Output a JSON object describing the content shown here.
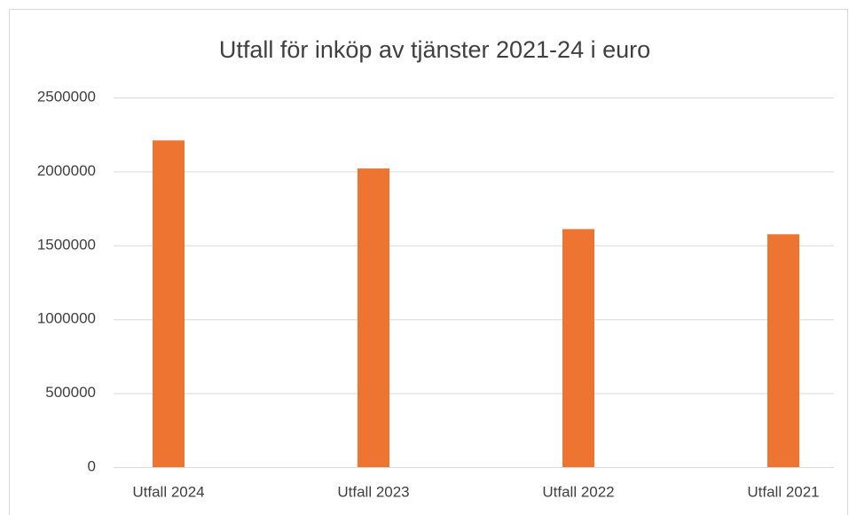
{
  "chart_data": {
    "type": "bar",
    "title": "Utfall för inköp av tjänster 2021-24 i euro",
    "categories": [
      "Utfall 2024",
      "Utfall 2023",
      "Utfall 2022",
      "Utfall 2021"
    ],
    "values": [
      2210000,
      2020000,
      1610000,
      1575000
    ],
    "color": "#ed7431",
    "ylim": [
      0,
      2500000
    ],
    "yticks": [
      0,
      500000,
      1000000,
      1500000,
      2000000,
      2500000
    ],
    "grid": true
  }
}
